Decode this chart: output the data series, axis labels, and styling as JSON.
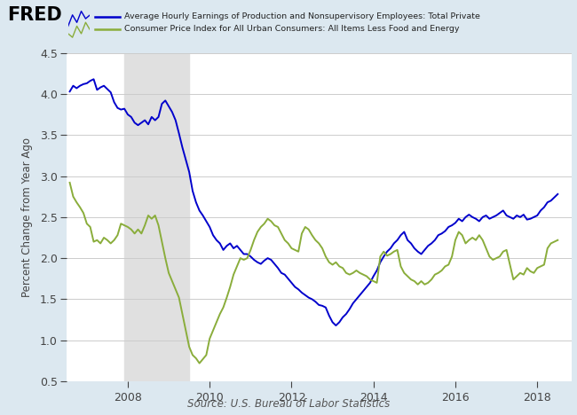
{
  "legend_line1": "Average Hourly Earnings of Production and Nonsupervisory Employees: Total Private",
  "legend_line2": "Consumer Price Index for All Urban Consumers: All Items Less Food and Energy",
  "ylabel": "Percent Change from Year Ago",
  "source": "Source: U.S. Bureau of Labor Statistics",
  "ylim": [
    0.5,
    4.5
  ],
  "yticks": [
    0.5,
    1.0,
    1.5,
    2.0,
    2.5,
    3.0,
    3.5,
    4.0,
    4.5
  ],
  "xlim_start": 2006.5,
  "xlim_end": 2018.83,
  "xticks": [
    2008,
    2010,
    2012,
    2014,
    2016,
    2018
  ],
  "recession_start": 2007.917,
  "recession_end": 2009.5,
  "background_color": "#dce8f0",
  "plot_bg_color": "#ffffff",
  "recession_color": "#e0e0e0",
  "line1_color": "#0000cc",
  "line2_color": "#8aad3b",
  "ahe_data": [
    [
      2006.583,
      4.03
    ],
    [
      2006.667,
      4.1
    ],
    [
      2006.75,
      4.07
    ],
    [
      2006.833,
      4.1
    ],
    [
      2006.917,
      4.12
    ],
    [
      2007.0,
      4.13
    ],
    [
      2007.083,
      4.16
    ],
    [
      2007.167,
      4.18
    ],
    [
      2007.25,
      4.05
    ],
    [
      2007.333,
      4.08
    ],
    [
      2007.417,
      4.1
    ],
    [
      2007.5,
      4.06
    ],
    [
      2007.583,
      4.02
    ],
    [
      2007.667,
      3.9
    ],
    [
      2007.75,
      3.83
    ],
    [
      2007.833,
      3.81
    ],
    [
      2007.917,
      3.82
    ],
    [
      2008.0,
      3.75
    ],
    [
      2008.083,
      3.72
    ],
    [
      2008.167,
      3.65
    ],
    [
      2008.25,
      3.62
    ],
    [
      2008.333,
      3.65
    ],
    [
      2008.417,
      3.68
    ],
    [
      2008.5,
      3.63
    ],
    [
      2008.583,
      3.72
    ],
    [
      2008.667,
      3.68
    ],
    [
      2008.75,
      3.72
    ],
    [
      2008.833,
      3.88
    ],
    [
      2008.917,
      3.92
    ],
    [
      2009.0,
      3.85
    ],
    [
      2009.083,
      3.78
    ],
    [
      2009.167,
      3.68
    ],
    [
      2009.25,
      3.52
    ],
    [
      2009.333,
      3.35
    ],
    [
      2009.417,
      3.2
    ],
    [
      2009.5,
      3.05
    ],
    [
      2009.583,
      2.82
    ],
    [
      2009.667,
      2.68
    ],
    [
      2009.75,
      2.58
    ],
    [
      2009.833,
      2.52
    ],
    [
      2009.917,
      2.45
    ],
    [
      2010.0,
      2.38
    ],
    [
      2010.083,
      2.28
    ],
    [
      2010.167,
      2.22
    ],
    [
      2010.25,
      2.18
    ],
    [
      2010.333,
      2.1
    ],
    [
      2010.417,
      2.15
    ],
    [
      2010.5,
      2.18
    ],
    [
      2010.583,
      2.12
    ],
    [
      2010.667,
      2.15
    ],
    [
      2010.75,
      2.1
    ],
    [
      2010.833,
      2.05
    ],
    [
      2010.917,
      2.05
    ],
    [
      2011.0,
      2.02
    ],
    [
      2011.083,
      1.98
    ],
    [
      2011.167,
      1.95
    ],
    [
      2011.25,
      1.93
    ],
    [
      2011.333,
      1.97
    ],
    [
      2011.417,
      2.0
    ],
    [
      2011.5,
      1.98
    ],
    [
      2011.583,
      1.93
    ],
    [
      2011.667,
      1.88
    ],
    [
      2011.75,
      1.82
    ],
    [
      2011.833,
      1.8
    ],
    [
      2011.917,
      1.75
    ],
    [
      2012.0,
      1.7
    ],
    [
      2012.083,
      1.65
    ],
    [
      2012.167,
      1.62
    ],
    [
      2012.25,
      1.58
    ],
    [
      2012.333,
      1.55
    ],
    [
      2012.417,
      1.52
    ],
    [
      2012.5,
      1.5
    ],
    [
      2012.583,
      1.47
    ],
    [
      2012.667,
      1.43
    ],
    [
      2012.75,
      1.42
    ],
    [
      2012.833,
      1.4
    ],
    [
      2012.917,
      1.3
    ],
    [
      2013.0,
      1.22
    ],
    [
      2013.083,
      1.18
    ],
    [
      2013.167,
      1.22
    ],
    [
      2013.25,
      1.28
    ],
    [
      2013.333,
      1.32
    ],
    [
      2013.417,
      1.38
    ],
    [
      2013.5,
      1.45
    ],
    [
      2013.583,
      1.5
    ],
    [
      2013.667,
      1.55
    ],
    [
      2013.75,
      1.6
    ],
    [
      2013.833,
      1.65
    ],
    [
      2013.917,
      1.7
    ],
    [
      2014.0,
      1.78
    ],
    [
      2014.083,
      1.85
    ],
    [
      2014.167,
      1.95
    ],
    [
      2014.25,
      2.02
    ],
    [
      2014.333,
      2.08
    ],
    [
      2014.417,
      2.12
    ],
    [
      2014.5,
      2.18
    ],
    [
      2014.583,
      2.22
    ],
    [
      2014.667,
      2.28
    ],
    [
      2014.75,
      2.32
    ],
    [
      2014.833,
      2.22
    ],
    [
      2014.917,
      2.18
    ],
    [
      2015.0,
      2.12
    ],
    [
      2015.083,
      2.08
    ],
    [
      2015.167,
      2.05
    ],
    [
      2015.25,
      2.1
    ],
    [
      2015.333,
      2.15
    ],
    [
      2015.417,
      2.18
    ],
    [
      2015.5,
      2.22
    ],
    [
      2015.583,
      2.28
    ],
    [
      2015.667,
      2.3
    ],
    [
      2015.75,
      2.33
    ],
    [
      2015.833,
      2.38
    ],
    [
      2015.917,
      2.4
    ],
    [
      2016.0,
      2.43
    ],
    [
      2016.083,
      2.48
    ],
    [
      2016.167,
      2.45
    ],
    [
      2016.25,
      2.5
    ],
    [
      2016.333,
      2.53
    ],
    [
      2016.417,
      2.5
    ],
    [
      2016.5,
      2.48
    ],
    [
      2016.583,
      2.45
    ],
    [
      2016.667,
      2.5
    ],
    [
      2016.75,
      2.52
    ],
    [
      2016.833,
      2.48
    ],
    [
      2016.917,
      2.5
    ],
    [
      2017.0,
      2.52
    ],
    [
      2017.083,
      2.55
    ],
    [
      2017.167,
      2.58
    ],
    [
      2017.25,
      2.52
    ],
    [
      2017.333,
      2.5
    ],
    [
      2017.417,
      2.48
    ],
    [
      2017.5,
      2.52
    ],
    [
      2017.583,
      2.5
    ],
    [
      2017.667,
      2.53
    ],
    [
      2017.75,
      2.47
    ],
    [
      2017.833,
      2.48
    ],
    [
      2017.917,
      2.5
    ],
    [
      2018.0,
      2.52
    ],
    [
      2018.083,
      2.58
    ],
    [
      2018.167,
      2.62
    ],
    [
      2018.25,
      2.68
    ],
    [
      2018.333,
      2.7
    ],
    [
      2018.417,
      2.74
    ],
    [
      2018.5,
      2.78
    ]
  ],
  "cpi_data": [
    [
      2006.583,
      2.92
    ],
    [
      2006.667,
      2.75
    ],
    [
      2006.75,
      2.68
    ],
    [
      2006.833,
      2.62
    ],
    [
      2006.917,
      2.55
    ],
    [
      2007.0,
      2.42
    ],
    [
      2007.083,
      2.38
    ],
    [
      2007.167,
      2.2
    ],
    [
      2007.25,
      2.22
    ],
    [
      2007.333,
      2.18
    ],
    [
      2007.417,
      2.25
    ],
    [
      2007.5,
      2.22
    ],
    [
      2007.583,
      2.18
    ],
    [
      2007.667,
      2.22
    ],
    [
      2007.75,
      2.28
    ],
    [
      2007.833,
      2.42
    ],
    [
      2007.917,
      2.4
    ],
    [
      2008.0,
      2.38
    ],
    [
      2008.083,
      2.35
    ],
    [
      2008.167,
      2.3
    ],
    [
      2008.25,
      2.35
    ],
    [
      2008.333,
      2.3
    ],
    [
      2008.417,
      2.4
    ],
    [
      2008.5,
      2.52
    ],
    [
      2008.583,
      2.48
    ],
    [
      2008.667,
      2.52
    ],
    [
      2008.75,
      2.4
    ],
    [
      2008.833,
      2.2
    ],
    [
      2008.917,
      2.0
    ],
    [
      2009.0,
      1.82
    ],
    [
      2009.083,
      1.72
    ],
    [
      2009.167,
      1.62
    ],
    [
      2009.25,
      1.52
    ],
    [
      2009.333,
      1.32
    ],
    [
      2009.417,
      1.12
    ],
    [
      2009.5,
      0.92
    ],
    [
      2009.583,
      0.82
    ],
    [
      2009.667,
      0.78
    ],
    [
      2009.75,
      0.72
    ],
    [
      2009.833,
      0.77
    ],
    [
      2009.917,
      0.82
    ],
    [
      2010.0,
      1.02
    ],
    [
      2010.083,
      1.12
    ],
    [
      2010.167,
      1.22
    ],
    [
      2010.25,
      1.32
    ],
    [
      2010.333,
      1.4
    ],
    [
      2010.417,
      1.52
    ],
    [
      2010.5,
      1.65
    ],
    [
      2010.583,
      1.8
    ],
    [
      2010.667,
      1.9
    ],
    [
      2010.75,
      2.0
    ],
    [
      2010.833,
      1.98
    ],
    [
      2010.917,
      2.0
    ],
    [
      2011.0,
      2.1
    ],
    [
      2011.083,
      2.22
    ],
    [
      2011.167,
      2.32
    ],
    [
      2011.25,
      2.38
    ],
    [
      2011.333,
      2.42
    ],
    [
      2011.417,
      2.48
    ],
    [
      2011.5,
      2.45
    ],
    [
      2011.583,
      2.4
    ],
    [
      2011.667,
      2.38
    ],
    [
      2011.75,
      2.3
    ],
    [
      2011.833,
      2.22
    ],
    [
      2011.917,
      2.18
    ],
    [
      2012.0,
      2.12
    ],
    [
      2012.083,
      2.1
    ],
    [
      2012.167,
      2.08
    ],
    [
      2012.25,
      2.3
    ],
    [
      2012.333,
      2.38
    ],
    [
      2012.417,
      2.35
    ],
    [
      2012.5,
      2.28
    ],
    [
      2012.583,
      2.22
    ],
    [
      2012.667,
      2.18
    ],
    [
      2012.75,
      2.12
    ],
    [
      2012.833,
      2.02
    ],
    [
      2012.917,
      1.95
    ],
    [
      2013.0,
      1.92
    ],
    [
      2013.083,
      1.95
    ],
    [
      2013.167,
      1.9
    ],
    [
      2013.25,
      1.88
    ],
    [
      2013.333,
      1.82
    ],
    [
      2013.417,
      1.8
    ],
    [
      2013.5,
      1.82
    ],
    [
      2013.583,
      1.85
    ],
    [
      2013.667,
      1.82
    ],
    [
      2013.75,
      1.8
    ],
    [
      2013.833,
      1.78
    ],
    [
      2013.917,
      1.74
    ],
    [
      2014.0,
      1.72
    ],
    [
      2014.083,
      1.7
    ],
    [
      2014.167,
      2.02
    ],
    [
      2014.25,
      2.08
    ],
    [
      2014.333,
      2.03
    ],
    [
      2014.417,
      2.05
    ],
    [
      2014.5,
      2.08
    ],
    [
      2014.583,
      2.1
    ],
    [
      2014.667,
      1.9
    ],
    [
      2014.75,
      1.82
    ],
    [
      2014.833,
      1.78
    ],
    [
      2014.917,
      1.74
    ],
    [
      2015.0,
      1.72
    ],
    [
      2015.083,
      1.68
    ],
    [
      2015.167,
      1.72
    ],
    [
      2015.25,
      1.68
    ],
    [
      2015.333,
      1.7
    ],
    [
      2015.417,
      1.74
    ],
    [
      2015.5,
      1.8
    ],
    [
      2015.583,
      1.82
    ],
    [
      2015.667,
      1.85
    ],
    [
      2015.75,
      1.9
    ],
    [
      2015.833,
      1.92
    ],
    [
      2015.917,
      2.02
    ],
    [
      2016.0,
      2.22
    ],
    [
      2016.083,
      2.32
    ],
    [
      2016.167,
      2.28
    ],
    [
      2016.25,
      2.18
    ],
    [
      2016.333,
      2.22
    ],
    [
      2016.417,
      2.25
    ],
    [
      2016.5,
      2.22
    ],
    [
      2016.583,
      2.28
    ],
    [
      2016.667,
      2.22
    ],
    [
      2016.75,
      2.12
    ],
    [
      2016.833,
      2.02
    ],
    [
      2016.917,
      1.98
    ],
    [
      2017.0,
      2.0
    ],
    [
      2017.083,
      2.02
    ],
    [
      2017.167,
      2.08
    ],
    [
      2017.25,
      2.1
    ],
    [
      2017.333,
      1.92
    ],
    [
      2017.417,
      1.74
    ],
    [
      2017.5,
      1.78
    ],
    [
      2017.583,
      1.82
    ],
    [
      2017.667,
      1.8
    ],
    [
      2017.75,
      1.88
    ],
    [
      2017.833,
      1.84
    ],
    [
      2017.917,
      1.82
    ],
    [
      2018.0,
      1.88
    ],
    [
      2018.083,
      1.9
    ],
    [
      2018.167,
      1.92
    ],
    [
      2018.25,
      2.12
    ],
    [
      2018.333,
      2.18
    ],
    [
      2018.417,
      2.2
    ],
    [
      2018.5,
      2.22
    ]
  ]
}
